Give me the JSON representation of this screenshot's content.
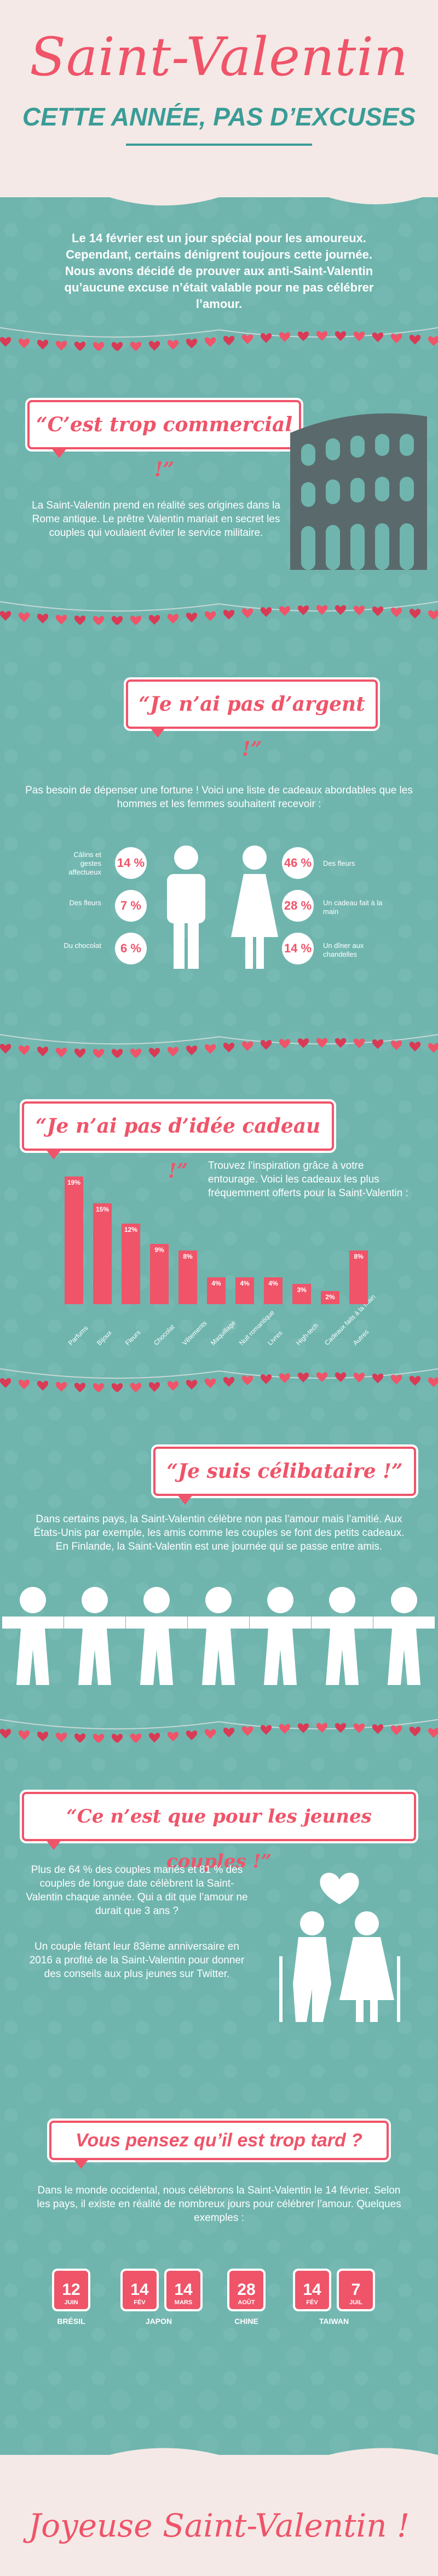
{
  "header": {
    "title": "Saint-Valentin",
    "subtitle": "CETTE ANNÉE, PAS D’EXCUSES"
  },
  "intro": "Le 14 février est un jour spécial pour les amoureux. Cependant, certains dénigrent toujours cette journée. Nous avons décidé de prouver aux anti-Saint-Valentin qu’aucune excuse n’était valable pour ne pas célébrer l’amour.",
  "sections": {
    "commercial": {
      "quote": "“C’est trop commercial !”",
      "text": "La Saint-Valentin prend en réalité ses origines dans la Rome antique. Le prêtre Valentin mariait en secret les couples qui voulaient éviter le service militaire."
    },
    "argent": {
      "quote": "“Je n’ai pas d’argent !”",
      "text": "Pas besoin de dépenser une fortune ! Voici une liste de cadeaux abordables que les hommes et les femmes souhaitent recevoir :",
      "men": [
        {
          "label": "Câlins et gestes affectueux",
          "pct": "14 %"
        },
        {
          "label": "Des fleurs",
          "pct": "7 %"
        },
        {
          "label": "Du chocolat",
          "pct": "6 %"
        }
      ],
      "women": [
        {
          "label": "Des fleurs",
          "pct": "46 %"
        },
        {
          "label": "Un cadeau fait à la main",
          "pct": "28 %"
        },
        {
          "label": "Un dîner aux chandelles",
          "pct": "14 %"
        }
      ]
    },
    "idee": {
      "quote": "“Je n’ai pas d’idée cadeau !”",
      "text": "Trouvez l’inspiration grâce à votre entourage. Voici les cadeaux les plus fréquemment offerts pour la Saint-Valentin :"
    },
    "celibataire": {
      "quote": "“Je suis célibataire !”",
      "text": "Dans certains pays, la Saint-Valentin célèbre non pas l’amour mais l’amitié. Aux États-Unis par exemple, les amis comme les couples se font des petits cadeaux. En Finlande, la Saint-Valentin est une journée qui se passe entre amis."
    },
    "jeunes": {
      "quote": "“Ce n’est que pour les jeunes couples !”",
      "text1": "Plus de 64 % des couples mariés et 81 % des couples de longue date célèbrent la Saint-Valentin chaque année. Qui a dit que l’amour ne durait que 3 ans ?",
      "text2": "Un couple fêtant leur 83ème anniversaire en 2016 a profité de la Saint-Valentin pour donner des conseils aux plus jeunes sur Twitter."
    },
    "tard": {
      "quote": "Vous pensez qu’il est trop tard ?",
      "text": "Dans le monde occidental, nous célébrons la Saint-Valentin le 14 février. Selon les pays, il existe en réalité de nombreux jours pour célébrer l’amour. Quelques exemples :",
      "countries": [
        {
          "name": "BRÉSIL",
          "dates": [
            {
              "day": "12",
              "month": "JUIN"
            }
          ]
        },
        {
          "name": "JAPON",
          "dates": [
            {
              "day": "14",
              "month": "FÉV"
            },
            {
              "day": "14",
              "month": "MARS"
            }
          ]
        },
        {
          "name": "CHINE",
          "dates": [
            {
              "day": "28",
              "month": "AOÛT"
            }
          ]
        },
        {
          "name": "TAIWAN",
          "dates": [
            {
              "day": "14",
              "month": "FÉV"
            },
            {
              "day": "7",
              "month": "JUIL"
            }
          ]
        }
      ]
    }
  },
  "chart_data": {
    "type": "bar",
    "categories": [
      "Parfums",
      "Bijoux",
      "Fleurs",
      "Chocolat",
      "Vêtements",
      "Maquillage",
      "Nuit romantique",
      "Livres",
      "High-tech",
      "Cadeaux faits à la main",
      "Autres"
    ],
    "values": [
      19,
      15,
      12,
      9,
      8,
      4,
      4,
      4,
      3,
      2,
      8
    ],
    "value_labels": [
      "19%",
      "15%",
      "12%",
      "9%",
      "8%",
      "4%",
      "4%",
      "4%",
      "3%",
      "2%",
      "8%"
    ],
    "ylim": [
      0,
      20
    ]
  },
  "footer": {
    "text": "Joyeuse Saint-Valentin !"
  },
  "colors": {
    "teal": "#6fb5ae",
    "pink": "#ef5469",
    "cream": "#f4e9e6"
  }
}
